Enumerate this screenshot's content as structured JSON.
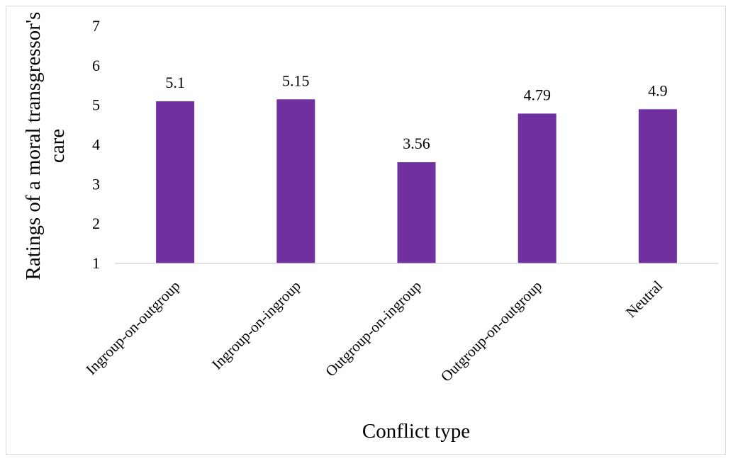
{
  "chart_data": {
    "type": "bar",
    "categories": [
      "Ingroup-on-outgroup",
      "Ingroup-on-ingroup",
      "Outgroup-on-ingroup",
      "Outgroup-on-outgroup",
      "Neutral"
    ],
    "values": [
      5.1,
      5.15,
      3.56,
      4.79,
      4.9
    ],
    "data_labels": [
      "5.1",
      "5.15",
      "3.56",
      "4.79",
      "4.9"
    ],
    "title": "",
    "xlabel": "Conflict type",
    "ylabel_lines": [
      "Ratings of a moral transgressor's",
      "care"
    ],
    "ylim": [
      1,
      7
    ],
    "yticks": [
      "1",
      "2",
      "3",
      "4",
      "5",
      "6",
      "7"
    ],
    "grid": false,
    "legend": "none",
    "bar_color": "#7030a0"
  }
}
